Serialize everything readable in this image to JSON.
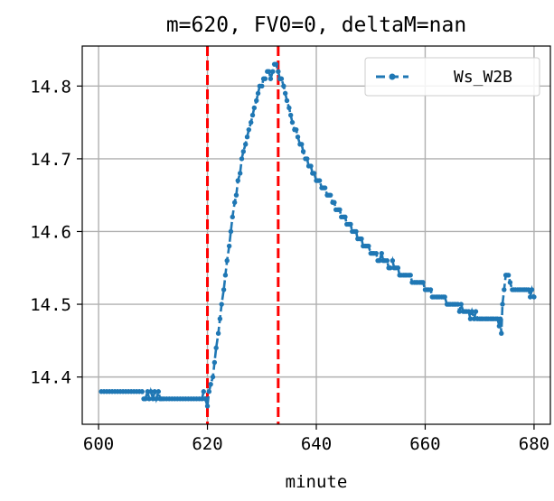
{
  "chart_data": {
    "type": "line",
    "title": "m=620, FV0=0, deltaM=nan",
    "xlabel": "minute",
    "ylabel": "",
    "xlim": [
      597,
      683
    ],
    "ylim": [
      14.335,
      14.855
    ],
    "xticks": [
      600,
      620,
      640,
      660,
      680
    ],
    "yticks": [
      14.4,
      14.5,
      14.6,
      14.7,
      14.8
    ],
    "xtick_labels": [
      "600",
      "620",
      "640",
      "660",
      "680"
    ],
    "ytick_labels": [
      "14.4",
      "14.5",
      "14.6",
      "14.7",
      "14.8"
    ],
    "grid": true,
    "legend": {
      "position": "top-right"
    },
    "series": [
      {
        "name": "Ws_W2B",
        "color": "#1f77b4",
        "style": "dashed-with-dots",
        "points": [
          [
            600.5,
            14.38
          ],
          [
            601.0,
            14.38
          ],
          [
            601.5,
            14.38
          ],
          [
            602.0,
            14.38
          ],
          [
            602.5,
            14.38
          ],
          [
            603.0,
            14.38
          ],
          [
            603.5,
            14.38
          ],
          [
            604.0,
            14.38
          ],
          [
            604.5,
            14.38
          ],
          [
            605.0,
            14.38
          ],
          [
            605.5,
            14.38
          ],
          [
            606.0,
            14.38
          ],
          [
            606.5,
            14.38
          ],
          [
            607.0,
            14.38
          ],
          [
            607.5,
            14.38
          ],
          [
            608.0,
            14.38
          ],
          [
            608.3,
            14.37
          ],
          [
            608.6,
            14.37
          ],
          [
            609.0,
            14.38
          ],
          [
            609.3,
            14.37
          ],
          [
            609.6,
            14.38
          ],
          [
            610.0,
            14.37
          ],
          [
            610.3,
            14.38
          ],
          [
            610.6,
            14.37
          ],
          [
            611.0,
            14.38
          ],
          [
            611.3,
            14.37
          ],
          [
            611.6,
            14.37
          ],
          [
            612.0,
            14.37
          ],
          [
            612.5,
            14.37
          ],
          [
            613.0,
            14.37
          ],
          [
            613.5,
            14.37
          ],
          [
            614.0,
            14.37
          ],
          [
            614.5,
            14.37
          ],
          [
            615.0,
            14.37
          ],
          [
            615.5,
            14.37
          ],
          [
            616.0,
            14.37
          ],
          [
            616.5,
            14.37
          ],
          [
            617.0,
            14.37
          ],
          [
            617.5,
            14.37
          ],
          [
            618.0,
            14.37
          ],
          [
            618.5,
            14.37
          ],
          [
            619.0,
            14.37
          ],
          [
            619.3,
            14.38
          ],
          [
            619.6,
            14.37
          ],
          [
            620.0,
            14.36
          ],
          [
            620.3,
            14.38
          ],
          [
            620.6,
            14.39
          ],
          [
            621.0,
            14.4
          ],
          [
            621.3,
            14.42
          ],
          [
            621.6,
            14.44
          ],
          [
            622.0,
            14.46
          ],
          [
            622.3,
            14.48
          ],
          [
            622.6,
            14.5
          ],
          [
            623.0,
            14.52
          ],
          [
            623.3,
            14.54
          ],
          [
            623.6,
            14.56
          ],
          [
            624.0,
            14.58
          ],
          [
            624.3,
            14.6
          ],
          [
            624.6,
            14.62
          ],
          [
            625.0,
            14.64
          ],
          [
            625.3,
            14.65
          ],
          [
            625.6,
            14.67
          ],
          [
            626.0,
            14.68
          ],
          [
            626.3,
            14.7
          ],
          [
            626.6,
            14.71
          ],
          [
            627.0,
            14.72
          ],
          [
            627.3,
            14.73
          ],
          [
            627.6,
            14.74
          ],
          [
            628.0,
            14.75
          ],
          [
            628.3,
            14.76
          ],
          [
            628.6,
            14.77
          ],
          [
            629.0,
            14.78
          ],
          [
            629.3,
            14.79
          ],
          [
            629.6,
            14.8
          ],
          [
            630.0,
            14.8
          ],
          [
            630.3,
            14.81
          ],
          [
            630.6,
            14.81
          ],
          [
            631.0,
            14.82
          ],
          [
            631.3,
            14.82
          ],
          [
            631.6,
            14.81
          ],
          [
            632.0,
            14.82
          ],
          [
            632.3,
            14.83
          ],
          [
            632.6,
            14.83
          ],
          [
            633.0,
            14.82
          ],
          [
            633.3,
            14.81
          ],
          [
            633.6,
            14.81
          ],
          [
            634.0,
            14.8
          ],
          [
            634.3,
            14.79
          ],
          [
            634.6,
            14.78
          ],
          [
            635.0,
            14.77
          ],
          [
            635.3,
            14.76
          ],
          [
            635.6,
            14.75
          ],
          [
            636.0,
            14.74
          ],
          [
            636.3,
            14.74
          ],
          [
            636.6,
            14.73
          ],
          [
            637.0,
            14.72
          ],
          [
            637.3,
            14.72
          ],
          [
            637.6,
            14.71
          ],
          [
            638.0,
            14.7
          ],
          [
            638.3,
            14.7
          ],
          [
            638.6,
            14.69
          ],
          [
            639.0,
            14.69
          ],
          [
            639.3,
            14.68
          ],
          [
            639.6,
            14.68
          ],
          [
            640.0,
            14.67
          ],
          [
            640.3,
            14.67
          ],
          [
            640.6,
            14.67
          ],
          [
            641.0,
            14.66
          ],
          [
            641.3,
            14.66
          ],
          [
            641.6,
            14.66
          ],
          [
            642.0,
            14.65
          ],
          [
            642.3,
            14.65
          ],
          [
            642.6,
            14.65
          ],
          [
            643.0,
            14.64
          ],
          [
            643.3,
            14.64
          ],
          [
            643.6,
            14.63
          ],
          [
            644.0,
            14.63
          ],
          [
            644.3,
            14.63
          ],
          [
            644.6,
            14.62
          ],
          [
            645.0,
            14.62
          ],
          [
            645.3,
            14.62
          ],
          [
            645.6,
            14.61
          ],
          [
            646.0,
            14.61
          ],
          [
            646.3,
            14.61
          ],
          [
            646.6,
            14.6
          ],
          [
            647.0,
            14.6
          ],
          [
            647.3,
            14.6
          ],
          [
            647.6,
            14.59
          ],
          [
            648.0,
            14.59
          ],
          [
            648.3,
            14.59
          ],
          [
            648.6,
            14.58
          ],
          [
            649.0,
            14.58
          ],
          [
            649.3,
            14.58
          ],
          [
            649.6,
            14.58
          ],
          [
            650.0,
            14.57
          ],
          [
            650.3,
            14.57
          ],
          [
            650.6,
            14.57
          ],
          [
            651.0,
            14.57
          ],
          [
            651.3,
            14.56
          ],
          [
            651.6,
            14.56
          ],
          [
            652.0,
            14.57
          ],
          [
            652.3,
            14.56
          ],
          [
            652.6,
            14.56
          ],
          [
            653.0,
            14.56
          ],
          [
            653.3,
            14.55
          ],
          [
            653.6,
            14.55
          ],
          [
            654.0,
            14.56
          ],
          [
            654.3,
            14.55
          ],
          [
            654.6,
            14.55
          ],
          [
            655.0,
            14.55
          ],
          [
            655.3,
            14.54
          ],
          [
            655.6,
            14.54
          ],
          [
            656.0,
            14.54
          ],
          [
            656.3,
            14.54
          ],
          [
            656.6,
            14.54
          ],
          [
            657.0,
            14.54
          ],
          [
            657.3,
            14.54
          ],
          [
            657.6,
            14.53
          ],
          [
            658.0,
            14.53
          ],
          [
            658.3,
            14.53
          ],
          [
            658.6,
            14.53
          ],
          [
            659.0,
            14.53
          ],
          [
            659.3,
            14.53
          ],
          [
            659.6,
            14.53
          ],
          [
            660.0,
            14.52
          ],
          [
            660.3,
            14.52
          ],
          [
            660.6,
            14.52
          ],
          [
            661.0,
            14.52
          ],
          [
            661.3,
            14.51
          ],
          [
            661.6,
            14.51
          ],
          [
            662.0,
            14.51
          ],
          [
            662.3,
            14.51
          ],
          [
            662.6,
            14.51
          ],
          [
            663.0,
            14.51
          ],
          [
            663.3,
            14.51
          ],
          [
            663.6,
            14.51
          ],
          [
            664.0,
            14.5
          ],
          [
            664.3,
            14.5
          ],
          [
            664.6,
            14.5
          ],
          [
            665.0,
            14.5
          ],
          [
            665.3,
            14.5
          ],
          [
            665.6,
            14.5
          ],
          [
            666.0,
            14.5
          ],
          [
            666.3,
            14.49
          ],
          [
            666.6,
            14.5
          ],
          [
            667.0,
            14.49
          ],
          [
            667.3,
            14.49
          ],
          [
            667.6,
            14.49
          ],
          [
            668.0,
            14.49
          ],
          [
            668.3,
            14.48
          ],
          [
            668.6,
            14.49
          ],
          [
            669.0,
            14.48
          ],
          [
            669.3,
            14.49
          ],
          [
            669.6,
            14.48
          ],
          [
            670.0,
            14.48
          ],
          [
            670.3,
            14.48
          ],
          [
            670.6,
            14.48
          ],
          [
            671.0,
            14.48
          ],
          [
            671.3,
            14.48
          ],
          [
            671.6,
            14.48
          ],
          [
            672.0,
            14.48
          ],
          [
            672.3,
            14.48
          ],
          [
            672.6,
            14.48
          ],
          [
            673.0,
            14.48
          ],
          [
            673.3,
            14.48
          ],
          [
            673.6,
            14.47
          ],
          [
            673.8,
            14.48
          ],
          [
            674.0,
            14.46
          ],
          [
            674.2,
            14.5
          ],
          [
            674.5,
            14.52
          ],
          [
            674.8,
            14.54
          ],
          [
            675.0,
            14.54
          ],
          [
            675.3,
            14.54
          ],
          [
            675.6,
            14.53
          ],
          [
            676.0,
            14.52
          ],
          [
            676.3,
            14.52
          ],
          [
            676.6,
            14.52
          ],
          [
            677.0,
            14.52
          ],
          [
            677.3,
            14.52
          ],
          [
            677.6,
            14.52
          ],
          [
            678.0,
            14.52
          ],
          [
            678.3,
            14.52
          ],
          [
            678.6,
            14.52
          ],
          [
            679.0,
            14.52
          ],
          [
            679.3,
            14.51
          ],
          [
            679.6,
            14.52
          ],
          [
            680.0,
            14.51
          ]
        ]
      }
    ],
    "vlines": [
      {
        "x": 620,
        "color": "#ff0000",
        "style": "dashed"
      },
      {
        "x": 633,
        "color": "#ff0000",
        "style": "dashed"
      }
    ]
  }
}
